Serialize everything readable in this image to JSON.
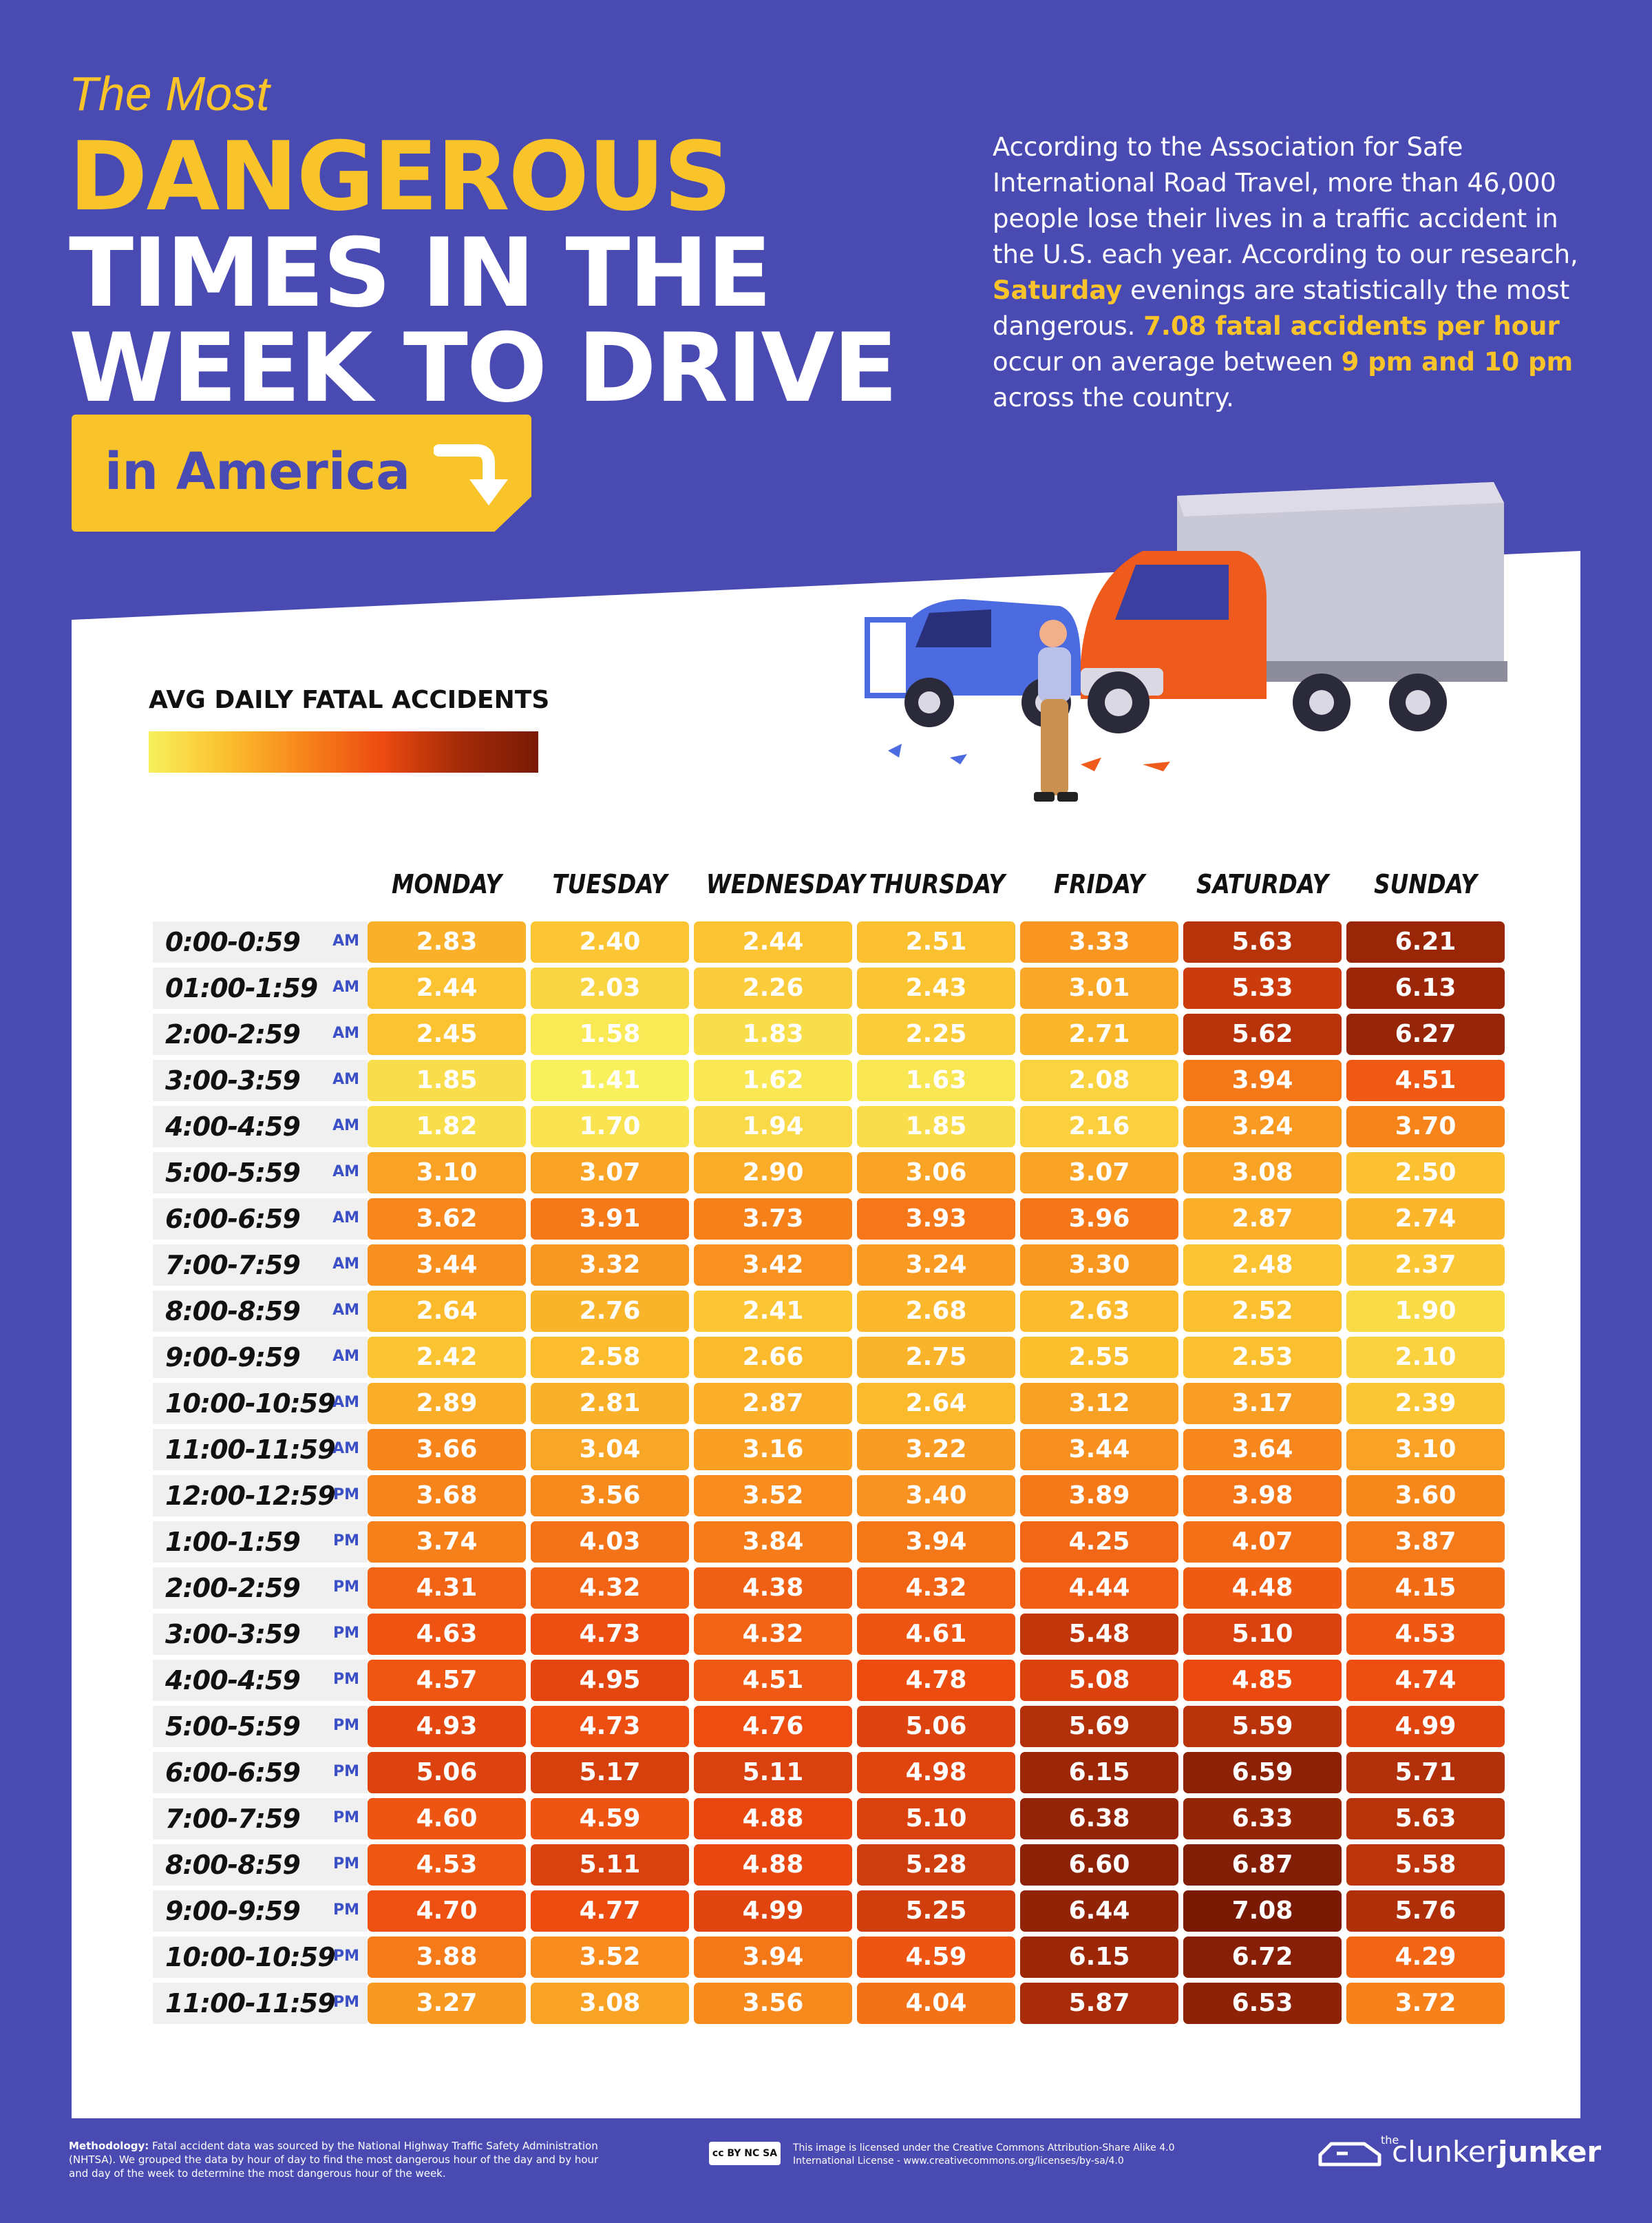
{
  "header": {
    "title_small": "The Most",
    "title_line1": "DANGEROUS",
    "title_line2": "TIMES IN THE",
    "title_line3": "WEEK TO DRIVE",
    "subtitle": "in America",
    "intro": {
      "p1": "According to the Association for Safe International Road Travel, more than 46,000 people lose their lives in a traffic accident in the U.S. each year. According to our research,",
      "hl1": "Saturday",
      "p2": "evenings are statistically the most dangerous.",
      "hl2": "7.08 fatal accidents per hour",
      "p3": "occur on average between",
      "hl3": "9 pm and 10 pm",
      "p4": "across the country."
    }
  },
  "legend": {
    "title": "AVG DAILY FATAL ACCIDENTS"
  },
  "chart_data": {
    "type": "heatmap",
    "categories": [
      "MONDAY",
      "TUESDAY",
      "WEDNESDAY",
      "THURSDAY",
      "FRIDAY",
      "SATURDAY",
      "SUNDAY"
    ],
    "rows": [
      {
        "label": "0:00-0:59",
        "ampm": "AM",
        "values": [
          2.83,
          2.4,
          2.44,
          2.51,
          3.33,
          5.63,
          6.21
        ]
      },
      {
        "label": "01:00-1:59",
        "ampm": "AM",
        "values": [
          2.44,
          2.03,
          2.26,
          2.43,
          3.01,
          5.33,
          6.13
        ]
      },
      {
        "label": "2:00-2:59",
        "ampm": "AM",
        "values": [
          2.45,
          1.58,
          1.83,
          2.25,
          2.71,
          5.62,
          6.27
        ]
      },
      {
        "label": "3:00-3:59",
        "ampm": "AM",
        "values": [
          1.85,
          1.41,
          1.62,
          1.63,
          2.08,
          3.94,
          4.51
        ]
      },
      {
        "label": "4:00-4:59",
        "ampm": "AM",
        "values": [
          1.82,
          1.7,
          1.94,
          1.85,
          2.16,
          3.24,
          3.7
        ]
      },
      {
        "label": "5:00-5:59",
        "ampm": "AM",
        "values": [
          3.1,
          3.07,
          2.9,
          3.06,
          3.07,
          3.08,
          2.5
        ]
      },
      {
        "label": "6:00-6:59",
        "ampm": "AM",
        "values": [
          3.62,
          3.91,
          3.73,
          3.93,
          3.96,
          2.87,
          2.74
        ]
      },
      {
        "label": "7:00-7:59",
        "ampm": "AM",
        "values": [
          3.44,
          3.32,
          3.42,
          3.24,
          3.3,
          2.48,
          2.37
        ]
      },
      {
        "label": "8:00-8:59",
        "ampm": "AM",
        "values": [
          2.64,
          2.76,
          2.41,
          2.68,
          2.63,
          2.52,
          1.9
        ]
      },
      {
        "label": "9:00-9:59",
        "ampm": "AM",
        "values": [
          2.42,
          2.58,
          2.66,
          2.75,
          2.55,
          2.53,
          2.1
        ]
      },
      {
        "label": "10:00-10:59",
        "ampm": "AM",
        "values": [
          2.89,
          2.81,
          2.87,
          2.64,
          3.12,
          3.17,
          2.39
        ]
      },
      {
        "label": "11:00-11:59",
        "ampm": "AM",
        "values": [
          3.66,
          3.04,
          3.16,
          3.22,
          3.44,
          3.64,
          3.1
        ]
      },
      {
        "label": "12:00-12:59",
        "ampm": "PM",
        "values": [
          3.68,
          3.56,
          3.52,
          3.4,
          3.89,
          3.98,
          3.6
        ]
      },
      {
        "label": "1:00-1:59",
        "ampm": "PM",
        "values": [
          3.74,
          4.03,
          3.84,
          3.94,
          4.25,
          4.07,
          3.87
        ]
      },
      {
        "label": "2:00-2:59",
        "ampm": "PM",
        "values": [
          4.31,
          4.32,
          4.38,
          4.32,
          4.44,
          4.48,
          4.15
        ]
      },
      {
        "label": "3:00-3:59",
        "ampm": "PM",
        "values": [
          4.63,
          4.73,
          4.32,
          4.61,
          5.48,
          5.1,
          4.53
        ]
      },
      {
        "label": "4:00-4:59",
        "ampm": "PM",
        "values": [
          4.57,
          4.95,
          4.51,
          4.78,
          5.08,
          4.85,
          4.74
        ]
      },
      {
        "label": "5:00-5:59",
        "ampm": "PM",
        "values": [
          4.93,
          4.73,
          4.76,
          5.06,
          5.69,
          5.59,
          4.99
        ]
      },
      {
        "label": "6:00-6:59",
        "ampm": "PM",
        "values": [
          5.06,
          5.17,
          5.11,
          4.98,
          6.15,
          6.59,
          5.71
        ]
      },
      {
        "label": "7:00-7:59",
        "ampm": "PM",
        "values": [
          4.6,
          4.59,
          4.88,
          5.1,
          6.38,
          6.33,
          5.63
        ]
      },
      {
        "label": "8:00-8:59",
        "ampm": "PM",
        "values": [
          4.53,
          5.11,
          4.88,
          5.28,
          6.6,
          6.87,
          5.58
        ]
      },
      {
        "label": "9:00-9:59",
        "ampm": "PM",
        "values": [
          4.7,
          4.77,
          4.99,
          5.25,
          6.44,
          7.08,
          5.76
        ]
      },
      {
        "label": "10:00-10:59",
        "ampm": "PM",
        "values": [
          3.88,
          3.52,
          3.94,
          4.59,
          6.15,
          6.72,
          4.29
        ]
      },
      {
        "label": "11:00-11:59",
        "ampm": "PM",
        "values": [
          3.27,
          3.08,
          3.56,
          4.04,
          5.87,
          6.53,
          3.72
        ]
      }
    ],
    "colorscale": [
      "#f8f05c",
      "#fbbf2e",
      "#f7841b",
      "#ec4a10",
      "#a32a08",
      "#7a1a05"
    ]
  },
  "footer": {
    "methodology_label": "Methodology:",
    "methodology_text": "Fatal accident data was sourced by the National Highway Traffic Safety Administration (NHTSA). We grouped the data by hour of day to find the most dangerous hour of the day and by hour and day of the week to determine the most dangerous hour of the week.",
    "cc_badge": "cc BY NC SA",
    "license_text": "This image is licensed under the Creative Commons Attribution-Share Alike 4.0 International License - www.creativecommons.org/licenses/by-sa/4.0",
    "logo_the": "the",
    "logo_light": "clunker",
    "logo_bold": "junker"
  }
}
